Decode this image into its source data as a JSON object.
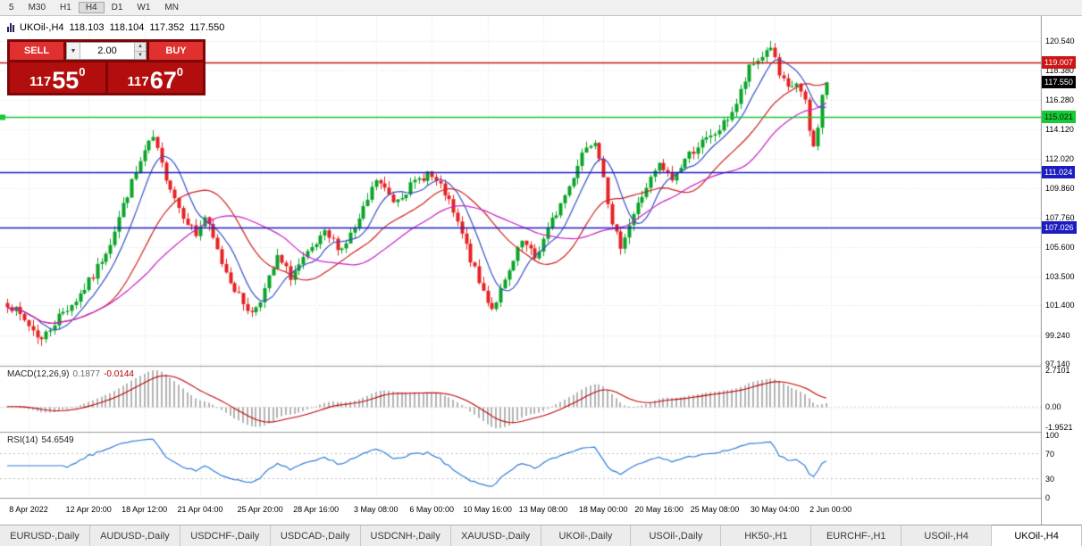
{
  "toolbar": {
    "timeframes": [
      "5",
      "M30",
      "H1",
      "H4",
      "D1",
      "W1",
      "MN"
    ],
    "active": "H4"
  },
  "chart_header": {
    "symbol": "UKOil-,H4",
    "open": "118.103",
    "high": "118.104",
    "low": "117.352",
    "close": "117.550"
  },
  "trade_panel": {
    "sell_label": "SELL",
    "buy_label": "BUY",
    "volume": "2.00",
    "sell_price_main": "117",
    "sell_price_big": "55",
    "sell_price_sup": "0",
    "buy_price_main": "117",
    "buy_price_big": "67",
    "buy_price_sup": "0"
  },
  "indicators": {
    "macd_label": "MACD(12,26,9)",
    "macd_v1": "0.1877",
    "macd_v2": "-0.0144",
    "macd_axis": [
      "2.7101",
      "0.00",
      "-1.9521"
    ],
    "rsi_label": "RSI(14)",
    "rsi_value": "54.6549",
    "rsi_axis": [
      "100",
      "70",
      "30",
      "0"
    ]
  },
  "price_axis": {
    "ticks": [
      "120.540",
      "118.380",
      "116.280",
      "114.120",
      "112.020",
      "109.860",
      "107.760",
      "105.600",
      "103.500",
      "101.400",
      "99.240",
      "97.140"
    ],
    "badges": [
      {
        "text": "119.007",
        "price": 119.007,
        "bg": "#cc1515",
        "fg": "#ffffff"
      },
      {
        "text": "117.550",
        "price": 117.55,
        "bg": "#000000",
        "fg": "#ffffff"
      },
      {
        "text": "115.021",
        "price": 115.021,
        "bg": "#17c837",
        "fg": "#002200"
      },
      {
        "text": "111.024",
        "price": 111.024,
        "bg": "#1c1cc0",
        "fg": "#ffffff"
      },
      {
        "text": "107.026",
        "price": 107.026,
        "bg": "#1c1cc0",
        "fg": "#ffffff"
      }
    ]
  },
  "time_axis": {
    "labels": [
      {
        "text": "8 Apr 2022",
        "bar": 5
      },
      {
        "text": "12 Apr 20:00",
        "bar": 19
      },
      {
        "text": "18 Apr 12:00",
        "bar": 32
      },
      {
        "text": "21 Apr 04:00",
        "bar": 45
      },
      {
        "text": "25 Apr 20:00",
        "bar": 59
      },
      {
        "text": "28 Apr 16:00",
        "bar": 72
      },
      {
        "text": "3 May 08:00",
        "bar": 86
      },
      {
        "text": "6 May 00:00",
        "bar": 99
      },
      {
        "text": "10 May 16:00",
        "bar": 112
      },
      {
        "text": "13 May 08:00",
        "bar": 125
      },
      {
        "text": "18 May 00:00",
        "bar": 139
      },
      {
        "text": "20 May 16:00",
        "bar": 152
      },
      {
        "text": "25 May 08:00",
        "bar": 165
      },
      {
        "text": "30 May 04:00",
        "bar": 179
      },
      {
        "text": "2 Jun 00:00",
        "bar": 192
      }
    ]
  },
  "tabs": {
    "items": [
      "EURUSD-,Daily",
      "AUDUSD-,Daily",
      "USDCHF-,Daily",
      "USDCAD-,Daily",
      "USDCNH-,Daily",
      "XAUUSD-,Daily",
      "UKOil-,Daily",
      "USOil-,Daily",
      "HK50-,H1",
      "EURCHF-,H1",
      "USOil-,H4",
      "UKOil-,H4"
    ],
    "active": "UKOil-,H4"
  },
  "chart_data": {
    "type": "candlestick",
    "symbol": "UKOil-",
    "period": "H4",
    "last_ohlc": [
      118.103,
      118.104,
      117.352,
      117.55
    ],
    "last_price": 117.55,
    "bid": 117.55,
    "ask": 117.67,
    "bars": 192,
    "seed": 7,
    "visible_price_range": [
      97.14,
      120.54
    ],
    "y_ticks": [
      120.54,
      118.38,
      116.28,
      114.12,
      112.02,
      109.86,
      107.76,
      105.6,
      103.5,
      101.4,
      99.24,
      97.14
    ],
    "levels": [
      {
        "price": 119.007,
        "color": "#cc1515",
        "marker": false
      },
      {
        "price": 115.021,
        "color": "#17c837",
        "marker": true
      },
      {
        "price": 111.024,
        "color": "#1c1cc0",
        "marker": false
      },
      {
        "price": 107.026,
        "color": "#1c1cc0",
        "marker": false
      }
    ],
    "price_anchors": [
      [
        0,
        101.6
      ],
      [
        4,
        100.3
      ],
      [
        8,
        98.9
      ],
      [
        12,
        100.6
      ],
      [
        16,
        101.8
      ],
      [
        20,
        103.5
      ],
      [
        24,
        106.0
      ],
      [
        28,
        109.5
      ],
      [
        32,
        112.5
      ],
      [
        34,
        113.5
      ],
      [
        36,
        111.5
      ],
      [
        40,
        108.5
      ],
      [
        44,
        106.5
      ],
      [
        46,
        107.8
      ],
      [
        50,
        104.5
      ],
      [
        54,
        102.0
      ],
      [
        57,
        100.8
      ],
      [
        60,
        102.5
      ],
      [
        63,
        104.8
      ],
      [
        66,
        103.5
      ],
      [
        70,
        105.0
      ],
      [
        74,
        106.5
      ],
      [
        78,
        105.5
      ],
      [
        82,
        107.5
      ],
      [
        86,
        110.5
      ],
      [
        90,
        109.0
      ],
      [
        94,
        110.0
      ],
      [
        98,
        111.0
      ],
      [
        102,
        109.5
      ],
      [
        106,
        106.5
      ],
      [
        110,
        103.0
      ],
      [
        113,
        101.2
      ],
      [
        116,
        103.0
      ],
      [
        120,
        106.0
      ],
      [
        123,
        104.8
      ],
      [
        127,
        107.5
      ],
      [
        131,
        110.0
      ],
      [
        134,
        112.5
      ],
      [
        137,
        113.5
      ],
      [
        139,
        111.0
      ],
      [
        141,
        107.0
      ],
      [
        143,
        105.8
      ],
      [
        146,
        108.0
      ],
      [
        149,
        110.0
      ],
      [
        152,
        111.5
      ],
      [
        155,
        110.5
      ],
      [
        158,
        112.0
      ],
      [
        161,
        113.0
      ],
      [
        164,
        113.5
      ],
      [
        167,
        114.5
      ],
      [
        170,
        116.0
      ],
      [
        173,
        118.5
      ],
      [
        176,
        119.5
      ],
      [
        178,
        120.2
      ],
      [
        180,
        118.0
      ],
      [
        182,
        117.0
      ],
      [
        184,
        117.5
      ],
      [
        186,
        116.0
      ],
      [
        187,
        114.0
      ],
      [
        188,
        112.8
      ],
      [
        189,
        114.5
      ],
      [
        190,
        116.5
      ],
      [
        191,
        117.55
      ]
    ],
    "time_label_bars": [
      5,
      19,
      32,
      45,
      59,
      72,
      86,
      99,
      112,
      125,
      139,
      152,
      165,
      179,
      192
    ],
    "ma_lines": [
      {
        "period": 8,
        "color": "#3850c8"
      },
      {
        "period": 21,
        "color": "#d02020"
      },
      {
        "period": 34,
        "color": "#c820c8"
      }
    ],
    "macd_params": [
      12,
      26,
      9
    ],
    "rsi_period": 14,
    "rsi_levels": [
      70,
      30
    ],
    "colors": {
      "up": "#0aa428",
      "down": "#e52222",
      "macd_hist": "#b4b4b4",
      "macd_signal": "#c00000",
      "rsi": "#2f7ed8",
      "grid": "#e2e2e2",
      "divider": "#9a9a9a"
    }
  }
}
